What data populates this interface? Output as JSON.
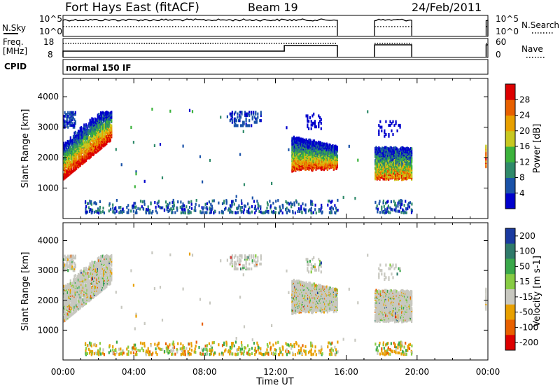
{
  "header": {
    "station": "Fort Hays East (fitACF)",
    "beam": "Beam 19",
    "date": "24/Feb/2011"
  },
  "aux_labels": {
    "nsky": "N.Sky",
    "nsky_ticks": [
      "10^5",
      "10^0"
    ],
    "nsearch": "N.Search",
    "nsearch_ticks": [
      "10^5",
      "10^0"
    ],
    "freq": "Freq.",
    "freq_unit": "[MHz]",
    "freq_ticks": [
      "18",
      "8"
    ],
    "nave": "Nave",
    "nave_ticks": [
      "60",
      "0"
    ],
    "cpid": "CPID",
    "cpid_value": "normal 150 IF"
  },
  "chart_data": [
    {
      "type": "heatmap",
      "title": "Power",
      "xlabel": "Time UT",
      "ylabel": "Slant Range [km]",
      "xticks": [
        "00:00",
        "04:00",
        "08:00",
        "12:00",
        "16:00",
        "20:00",
        "00:00"
      ],
      "xlim_hours": [
        0,
        24
      ],
      "yticks": [
        1000,
        2000,
        3000,
        4000
      ],
      "ylim": [
        0,
        4600
      ],
      "colorbar": {
        "label": "Power [dB]",
        "ticks": [
          4,
          8,
          12,
          16,
          20,
          24,
          28
        ],
        "colors": [
          "#0000cc",
          "#1a52a8",
          "#2f8a6a",
          "#3cb33c",
          "#c8c820",
          "#e8a000",
          "#e86000",
          "#dd0000"
        ]
      },
      "regions": [
        {
          "name": "morning echo band",
          "t": [
            0.0,
            2.7
          ],
          "range_km": [
            1300,
            3500
          ]
        },
        {
          "name": "afternoon band 1",
          "t": [
            12.9,
            15.5
          ],
          "range_km": [
            1500,
            2700
          ]
        },
        {
          "name": "afternoon band 2",
          "t": [
            17.6,
            19.7
          ],
          "range_km": [
            1250,
            2300
          ]
        },
        {
          "name": "near-range scatter",
          "t": [
            1.0,
            19.0
          ],
          "range_km": [
            180,
            600
          ]
        },
        {
          "name": "far scatter",
          "t": [
            9.3,
            11.2
          ],
          "range_km": [
            3000,
            3500
          ]
        }
      ]
    },
    {
      "type": "heatmap",
      "title": "Velocity",
      "xlabel": "Time UT",
      "ylabel": "Slant Range [km]",
      "xticks": [
        "00:00",
        "04:00",
        "08:00",
        "12:00",
        "16:00",
        "20:00",
        "00:00"
      ],
      "xlim_hours": [
        0,
        24
      ],
      "yticks": [
        1000,
        2000,
        3000,
        4000
      ],
      "ylim": [
        0,
        4600
      ],
      "colorbar": {
        "label": "Velocity [m s-1]",
        "tick_labels": [
          "200",
          "100",
          "50",
          "15",
          "-15",
          "-50",
          "-100",
          "-200"
        ],
        "colors": [
          "#1a3aa0",
          "#2f7a6a",
          "#3aa84a",
          "#88cc44",
          "#c8c8c0",
          "#e8a000",
          "#e86000",
          "#dd0000"
        ]
      }
    }
  ]
}
